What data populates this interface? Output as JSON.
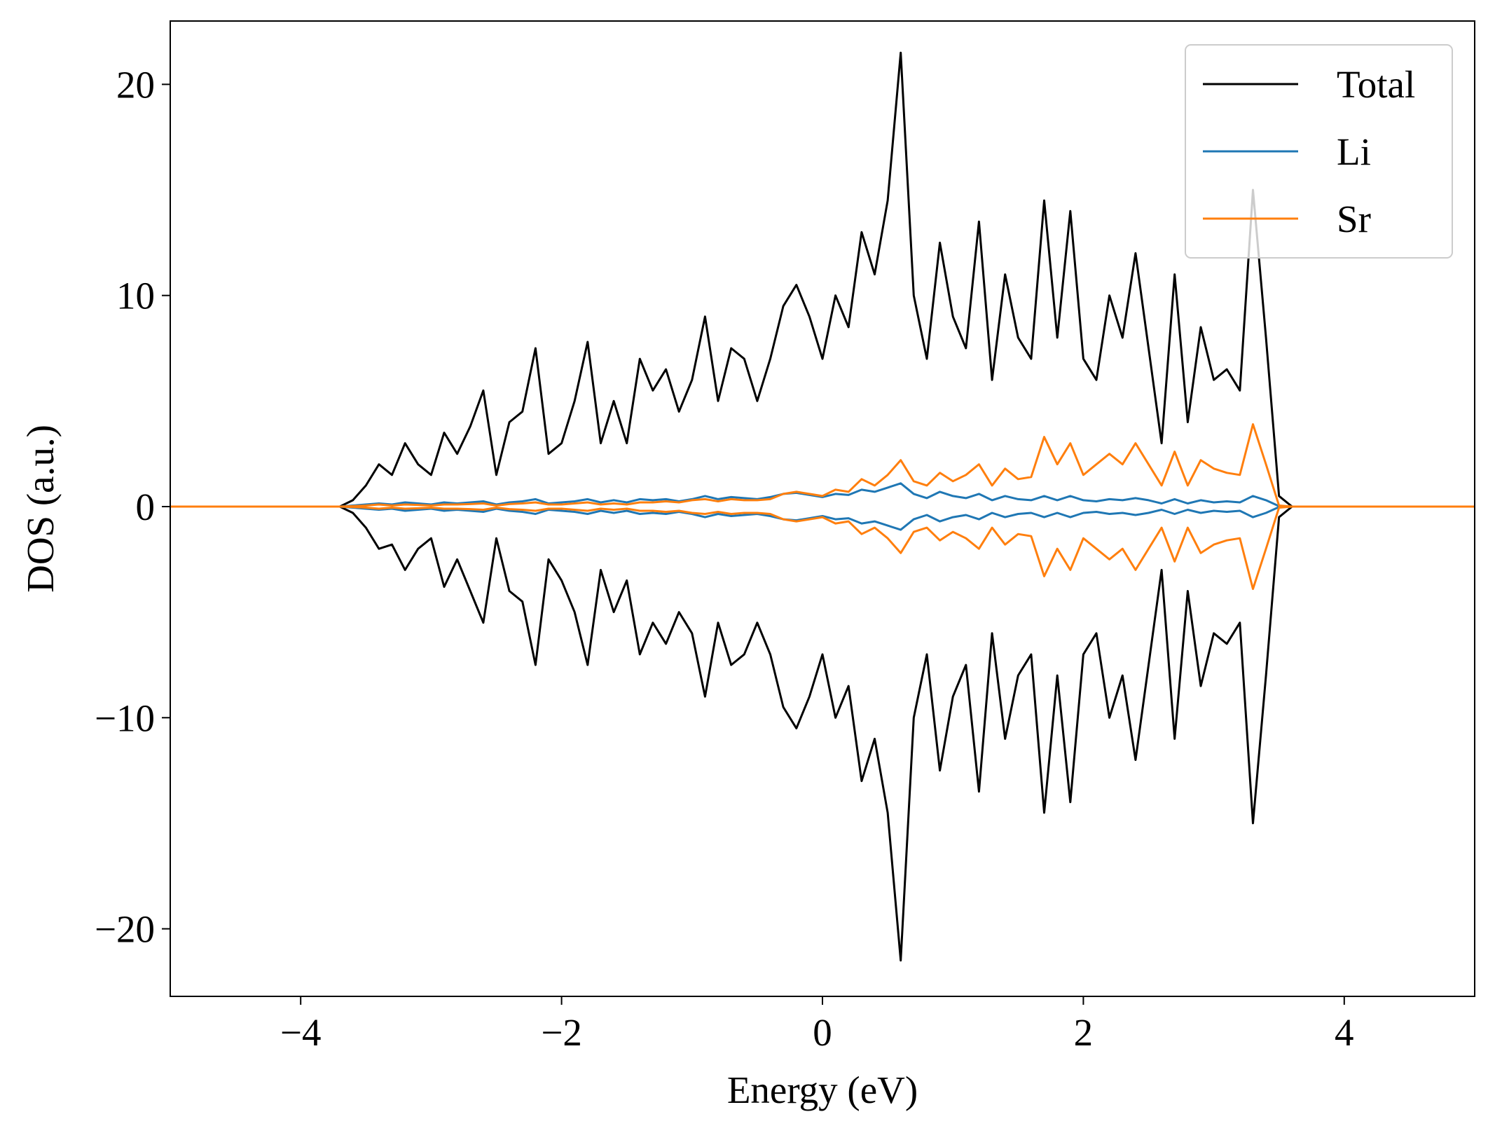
{
  "chart_data": {
    "type": "line",
    "xlabel": "Energy (eV)",
    "ylabel": "DOS (a.u.)",
    "xlim": [
      -5,
      5
    ],
    "ylim": [
      -23.2,
      23.0
    ],
    "xticks": [
      {
        "value": -4,
        "label": "−4"
      },
      {
        "value": -2,
        "label": "−2"
      },
      0,
      2,
      4
    ],
    "yticks": [
      {
        "value": -20,
        "label": "−20"
      },
      {
        "value": -10,
        "label": "−10"
      },
      0,
      10,
      20
    ],
    "legend": "upper right",
    "x": [
      -5,
      -3.8,
      -3.7,
      -3.6,
      -3.5,
      -3.4,
      -3.3,
      -3.2,
      -3.1,
      -3.0,
      -2.9,
      -2.8,
      -2.7,
      -2.6,
      -2.5,
      -2.4,
      -2.3,
      -2.2,
      -2.1,
      -2.0,
      -1.9,
      -1.8,
      -1.7,
      -1.6,
      -1.5,
      -1.4,
      -1.3,
      -1.2,
      -1.1,
      -1.0,
      -0.9,
      -0.8,
      -0.7,
      -0.6,
      -0.5,
      -0.4,
      -0.3,
      -0.2,
      -0.1,
      0,
      0.1,
      0.2,
      0.3,
      0.4,
      0.5,
      0.6,
      0.7,
      0.8,
      0.9,
      1.0,
      1.1,
      1.2,
      1.3,
      1.4,
      1.5,
      1.6,
      1.7,
      1.8,
      1.9,
      2.0,
      2.1,
      2.2,
      2.3,
      2.4,
      2.5,
      2.6,
      2.7,
      2.8,
      2.9,
      3.0,
      3.1,
      3.2,
      3.3,
      3.4,
      3.5,
      3.6,
      5
    ],
    "series": [
      {
        "name": "Total",
        "color": "#000000",
        "values": [
          0,
          0,
          0,
          0.3,
          1.0,
          2.0,
          1.5,
          3.0,
          2.0,
          1.5,
          3.5,
          2.5,
          3.8,
          5.5,
          1.5,
          4.0,
          4.5,
          7.5,
          2.5,
          3.0,
          5.0,
          7.8,
          3.0,
          5.0,
          3.0,
          7.0,
          5.5,
          6.5,
          4.5,
          6.0,
          9.0,
          5.0,
          7.5,
          7.0,
          5.0,
          7.0,
          9.5,
          10.5,
          9.0,
          7.0,
          10.0,
          8.5,
          13.0,
          11.0,
          14.5,
          21.5,
          10.0,
          7.0,
          12.5,
          9.0,
          7.5,
          13.5,
          6.0,
          11.0,
          8.0,
          7.0,
          14.5,
          8.0,
          14.0,
          7.0,
          6.0,
          10.0,
          8.0,
          12.0,
          7.5,
          3.0,
          11.0,
          4.0,
          8.5,
          6.0,
          6.5,
          5.5,
          15.0,
          8.0,
          0.5,
          0,
          0
        ],
        "values_down": [
          0,
          0,
          0,
          -0.3,
          -1.0,
          -2.0,
          -1.8,
          -3.0,
          -2.0,
          -1.5,
          -3.8,
          -2.5,
          -4.0,
          -5.5,
          -1.5,
          -4.0,
          -4.5,
          -7.5,
          -2.5,
          -3.5,
          -5.0,
          -7.5,
          -3.0,
          -5.0,
          -3.5,
          -7.0,
          -5.5,
          -6.5,
          -5.0,
          -6.0,
          -9.0,
          -5.5,
          -7.5,
          -7.0,
          -5.5,
          -7.0,
          -9.5,
          -10.5,
          -9.0,
          -7.0,
          -10.0,
          -8.5,
          -13.0,
          -11.0,
          -14.5,
          -21.5,
          -10.0,
          -7.0,
          -12.5,
          -9.0,
          -7.5,
          -13.5,
          -6.0,
          -11.0,
          -8.0,
          -7.0,
          -14.5,
          -8.0,
          -14.0,
          -7.0,
          -6.0,
          -10.0,
          -8.0,
          -12.0,
          -7.5,
          -3.0,
          -11.0,
          -4.0,
          -8.5,
          -6.0,
          -6.5,
          -5.5,
          -15.0,
          -8.0,
          -0.5,
          0,
          0
        ]
      },
      {
        "name": "Li",
        "color": "#1f77b4",
        "values": [
          0,
          0,
          0,
          0.05,
          0.1,
          0.15,
          0.1,
          0.2,
          0.15,
          0.1,
          0.2,
          0.15,
          0.2,
          0.25,
          0.1,
          0.2,
          0.25,
          0.35,
          0.15,
          0.2,
          0.25,
          0.35,
          0.2,
          0.3,
          0.2,
          0.35,
          0.3,
          0.35,
          0.25,
          0.35,
          0.5,
          0.35,
          0.45,
          0.4,
          0.35,
          0.45,
          0.6,
          0.65,
          0.55,
          0.45,
          0.6,
          0.55,
          0.8,
          0.7,
          0.9,
          1.1,
          0.6,
          0.4,
          0.7,
          0.5,
          0.4,
          0.6,
          0.3,
          0.5,
          0.35,
          0.3,
          0.5,
          0.3,
          0.5,
          0.3,
          0.25,
          0.35,
          0.3,
          0.4,
          0.3,
          0.15,
          0.35,
          0.15,
          0.3,
          0.2,
          0.25,
          0.2,
          0.5,
          0.3,
          0.02,
          0,
          0
        ],
        "values_down": [
          0,
          0,
          0,
          -0.05,
          -0.1,
          -0.15,
          -0.1,
          -0.2,
          -0.15,
          -0.1,
          -0.2,
          -0.15,
          -0.2,
          -0.25,
          -0.1,
          -0.2,
          -0.25,
          -0.35,
          -0.15,
          -0.2,
          -0.25,
          -0.35,
          -0.2,
          -0.3,
          -0.2,
          -0.35,
          -0.3,
          -0.35,
          -0.25,
          -0.35,
          -0.5,
          -0.35,
          -0.45,
          -0.4,
          -0.35,
          -0.45,
          -0.6,
          -0.65,
          -0.55,
          -0.45,
          -0.6,
          -0.55,
          -0.8,
          -0.7,
          -0.9,
          -1.1,
          -0.6,
          -0.4,
          -0.7,
          -0.5,
          -0.4,
          -0.6,
          -0.3,
          -0.5,
          -0.35,
          -0.3,
          -0.5,
          -0.3,
          -0.5,
          -0.3,
          -0.25,
          -0.35,
          -0.3,
          -0.4,
          -0.3,
          -0.15,
          -0.35,
          -0.15,
          -0.3,
          -0.2,
          -0.25,
          -0.2,
          -0.5,
          -0.3,
          -0.02,
          0,
          0
        ]
      },
      {
        "name": "Sr",
        "color": "#ff7f0e",
        "values": [
          0,
          0,
          0,
          0.02,
          0.05,
          0.1,
          0.05,
          0.1,
          0.08,
          0.05,
          0.1,
          0.1,
          0.12,
          0.15,
          0.05,
          0.12,
          0.15,
          0.2,
          0.1,
          0.1,
          0.15,
          0.2,
          0.1,
          0.15,
          0.1,
          0.2,
          0.2,
          0.25,
          0.2,
          0.3,
          0.35,
          0.25,
          0.35,
          0.3,
          0.3,
          0.35,
          0.6,
          0.7,
          0.6,
          0.5,
          0.8,
          0.7,
          1.3,
          1.0,
          1.5,
          2.2,
          1.2,
          1.0,
          1.6,
          1.2,
          1.5,
          2.0,
          1.0,
          1.8,
          1.3,
          1.4,
          3.3,
          2.0,
          3.0,
          1.5,
          2.0,
          2.5,
          2.0,
          3.0,
          2.0,
          1.0,
          2.6,
          1.0,
          2.2,
          1.8,
          1.6,
          1.5,
          3.9,
          2.0,
          0.05,
          0,
          0
        ],
        "values_down": [
          0,
          0,
          0,
          -0.02,
          -0.05,
          -0.1,
          -0.05,
          -0.1,
          -0.08,
          -0.05,
          -0.1,
          -0.1,
          -0.12,
          -0.15,
          -0.05,
          -0.12,
          -0.15,
          -0.2,
          -0.1,
          -0.1,
          -0.15,
          -0.2,
          -0.1,
          -0.15,
          -0.1,
          -0.2,
          -0.2,
          -0.25,
          -0.2,
          -0.3,
          -0.35,
          -0.25,
          -0.35,
          -0.3,
          -0.3,
          -0.35,
          -0.6,
          -0.7,
          -0.6,
          -0.5,
          -0.8,
          -0.7,
          -1.3,
          -1.0,
          -1.5,
          -2.2,
          -1.2,
          -1.0,
          -1.6,
          -1.2,
          -1.5,
          -2.0,
          -1.0,
          -1.8,
          -1.3,
          -1.4,
          -3.3,
          -2.0,
          -3.0,
          -1.5,
          -2.0,
          -2.5,
          -2.0,
          -3.0,
          -2.0,
          -1.0,
          -2.6,
          -1.0,
          -2.2,
          -1.8,
          -1.6,
          -1.5,
          -3.9,
          -2.0,
          -0.05,
          0,
          0
        ]
      }
    ]
  }
}
